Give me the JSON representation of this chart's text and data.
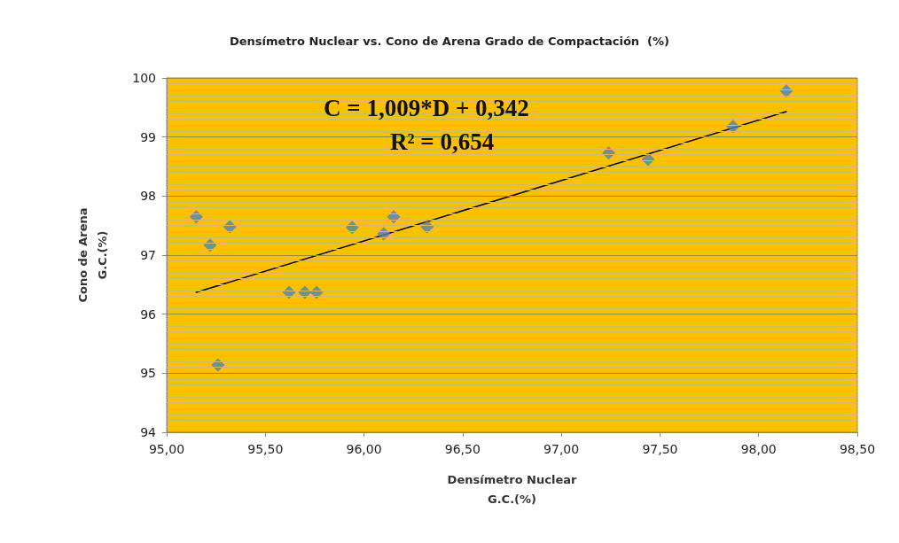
{
  "chart_data": {
    "type": "scatter",
    "title": "Densímetro Nuclear vs. Cono de Arena Grado de Compactación  (%)",
    "xlabel": "Densímetro Nuclear\nG.C.(%)",
    "ylabel": "Cono de Arena\nG.C.(%)",
    "annotations": [
      "C = 1,009*D + 0,342",
      "R² = 0,654"
    ],
    "series": [
      {
        "color": "#4f81bd",
        "marker": "diamond",
        "x": [
          95.15,
          95.22,
          95.32,
          95.26,
          95.62,
          95.7,
          95.76,
          95.94,
          96.1,
          96.15,
          96.32,
          97.24,
          97.44,
          97.87,
          98.14
        ],
        "values": [
          97.65,
          97.17,
          97.48,
          95.14,
          96.37,
          96.37,
          96.37,
          97.47,
          97.36,
          97.65,
          97.48,
          98.73,
          98.62,
          99.18,
          99.78
        ]
      },
      {
        "type": "line",
        "color": "#000000",
        "marker": "none",
        "x": [
          95.15,
          98.14
        ],
        "values": [
          96.37,
          99.43
        ]
      }
    ],
    "xlim": [
      95,
      98.5
    ],
    "xticks": [
      {
        "value": 95,
        "label": "95,00"
      },
      {
        "value": 95.5,
        "label": "95,50"
      },
      {
        "value": 96,
        "label": "96,00"
      },
      {
        "value": 96.5,
        "label": "96,50"
      },
      {
        "value": 97,
        "label": "97,00"
      },
      {
        "value": 97.5,
        "label": "97,50"
      },
      {
        "value": 98,
        "label": "98,00"
      },
      {
        "value": 98.5,
        "label": "98,50"
      }
    ],
    "ylim": [
      94,
      100
    ],
    "yticks": [
      94,
      {
        "value": 94.1,
        "label": null
      },
      {
        "value": 94.2,
        "label": null
      },
      {
        "value": 94.3,
        "label": null
      },
      {
        "value": 94.4,
        "label": null
      },
      {
        "value": 94.5,
        "label": null
      },
      {
        "value": 94.6,
        "label": null
      },
      {
        "value": 94.7,
        "label": null
      },
      {
        "value": 94.8,
        "label": null
      },
      {
        "value": 94.9,
        "label": null
      },
      95,
      {
        "value": 95.1,
        "label": null
      },
      {
        "value": 95.2,
        "label": null
      },
      {
        "value": 95.3,
        "label": null
      },
      {
        "value": 95.4,
        "label": null
      },
      {
        "value": 95.5,
        "label": null
      },
      {
        "value": 95.6,
        "label": null
      },
      {
        "value": 95.7,
        "label": null
      },
      {
        "value": 95.8,
        "label": null
      },
      {
        "value": 95.9,
        "label": null
      },
      96,
      {
        "value": 96.1,
        "label": null
      },
      {
        "value": 96.2,
        "label": null
      },
      {
        "value": 96.3,
        "label": null
      },
      {
        "value": 96.4,
        "label": null
      },
      {
        "value": 96.5,
        "label": null
      },
      {
        "value": 96.6,
        "label": null
      },
      {
        "value": 96.7,
        "label": null
      },
      {
        "value": 96.8,
        "label": null
      },
      {
        "value": 96.9,
        "label": null
      },
      97,
      {
        "value": 97.1,
        "label": null
      },
      {
        "value": 97.2,
        "label": null
      },
      {
        "value": 97.3,
        "label": null
      },
      {
        "value": 97.4,
        "label": null
      },
      {
        "value": 97.5,
        "label": null
      },
      {
        "value": 97.6,
        "label": null
      },
      {
        "value": 97.7,
        "label": null
      },
      {
        "value": 97.8,
        "label": null
      },
      {
        "value": 97.9,
        "label": null
      },
      98,
      {
        "value": 98.1,
        "label": null
      },
      {
        "value": 98.2,
        "label": null
      },
      {
        "value": 98.3,
        "label": null
      },
      {
        "value": 98.4,
        "label": null
      },
      {
        "value": 98.5,
        "label": null
      },
      {
        "value": 98.6,
        "label": null
      },
      {
        "value": 98.7,
        "label": null
      },
      {
        "value": 98.8,
        "label": null
      },
      {
        "value": 98.9,
        "label": null
      },
      99,
      {
        "value": 99.1,
        "label": null
      },
      {
        "value": 99.2,
        "label": null
      },
      {
        "value": 99.3,
        "label": null
      },
      {
        "value": 99.4,
        "label": null
      },
      {
        "value": 99.5,
        "label": null
      },
      {
        "value": 99.6,
        "label": null
      },
      {
        "value": 99.7,
        "label": null
      },
      {
        "value": 99.8,
        "label": null
      },
      {
        "value": 99.9,
        "label": null
      },
      100
    ],
    "grid": "y"
  }
}
